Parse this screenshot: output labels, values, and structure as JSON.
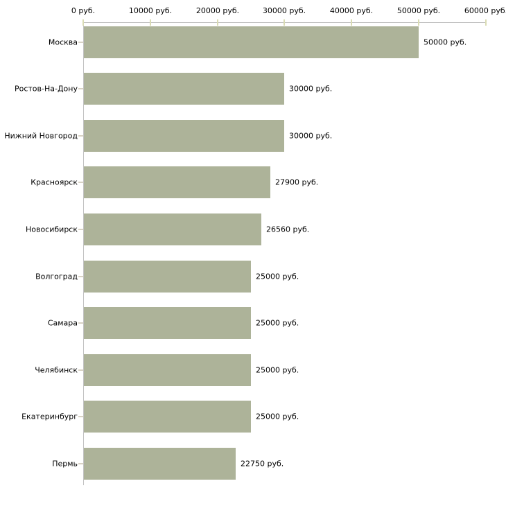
{
  "chart_data": {
    "type": "bar",
    "orientation": "horizontal",
    "title": "",
    "categories": [
      "Москва",
      "Ростов-На-Дону",
      "Нижний Новгород",
      "Красноярск",
      "Новосибирск",
      "Волгоград",
      "Самара",
      "Челябинск",
      "Екатеринбург",
      "Пермь"
    ],
    "values": [
      50000,
      30000,
      30000,
      27900,
      26560,
      25000,
      25000,
      25000,
      25000,
      22750
    ],
    "value_labels": [
      "50000 руб.",
      "30000 руб.",
      "30000 руб.",
      "27900 руб.",
      "26560 руб.",
      "25000 руб.",
      "25000 руб.",
      "25000 руб.",
      "25000 руб.",
      "22750 руб."
    ],
    "unit": "руб.",
    "x_axis": {
      "position": "top",
      "min": 0,
      "max": 60000,
      "step": 10000,
      "tick_labels": [
        "0 руб.",
        "10000 руб.",
        "20000 руб.",
        "30000 руб.",
        "40000 руб.",
        "50000 руб.",
        "60000 руб."
      ]
    },
    "grid": false,
    "legend": false,
    "colors": {
      "bar": "#adb399",
      "axis_line": "#c2c2c2",
      "x_tick": "#dadcb4",
      "y_tick": "#d8d2c4",
      "text": "#000000",
      "background": "#ffffff"
    }
  }
}
